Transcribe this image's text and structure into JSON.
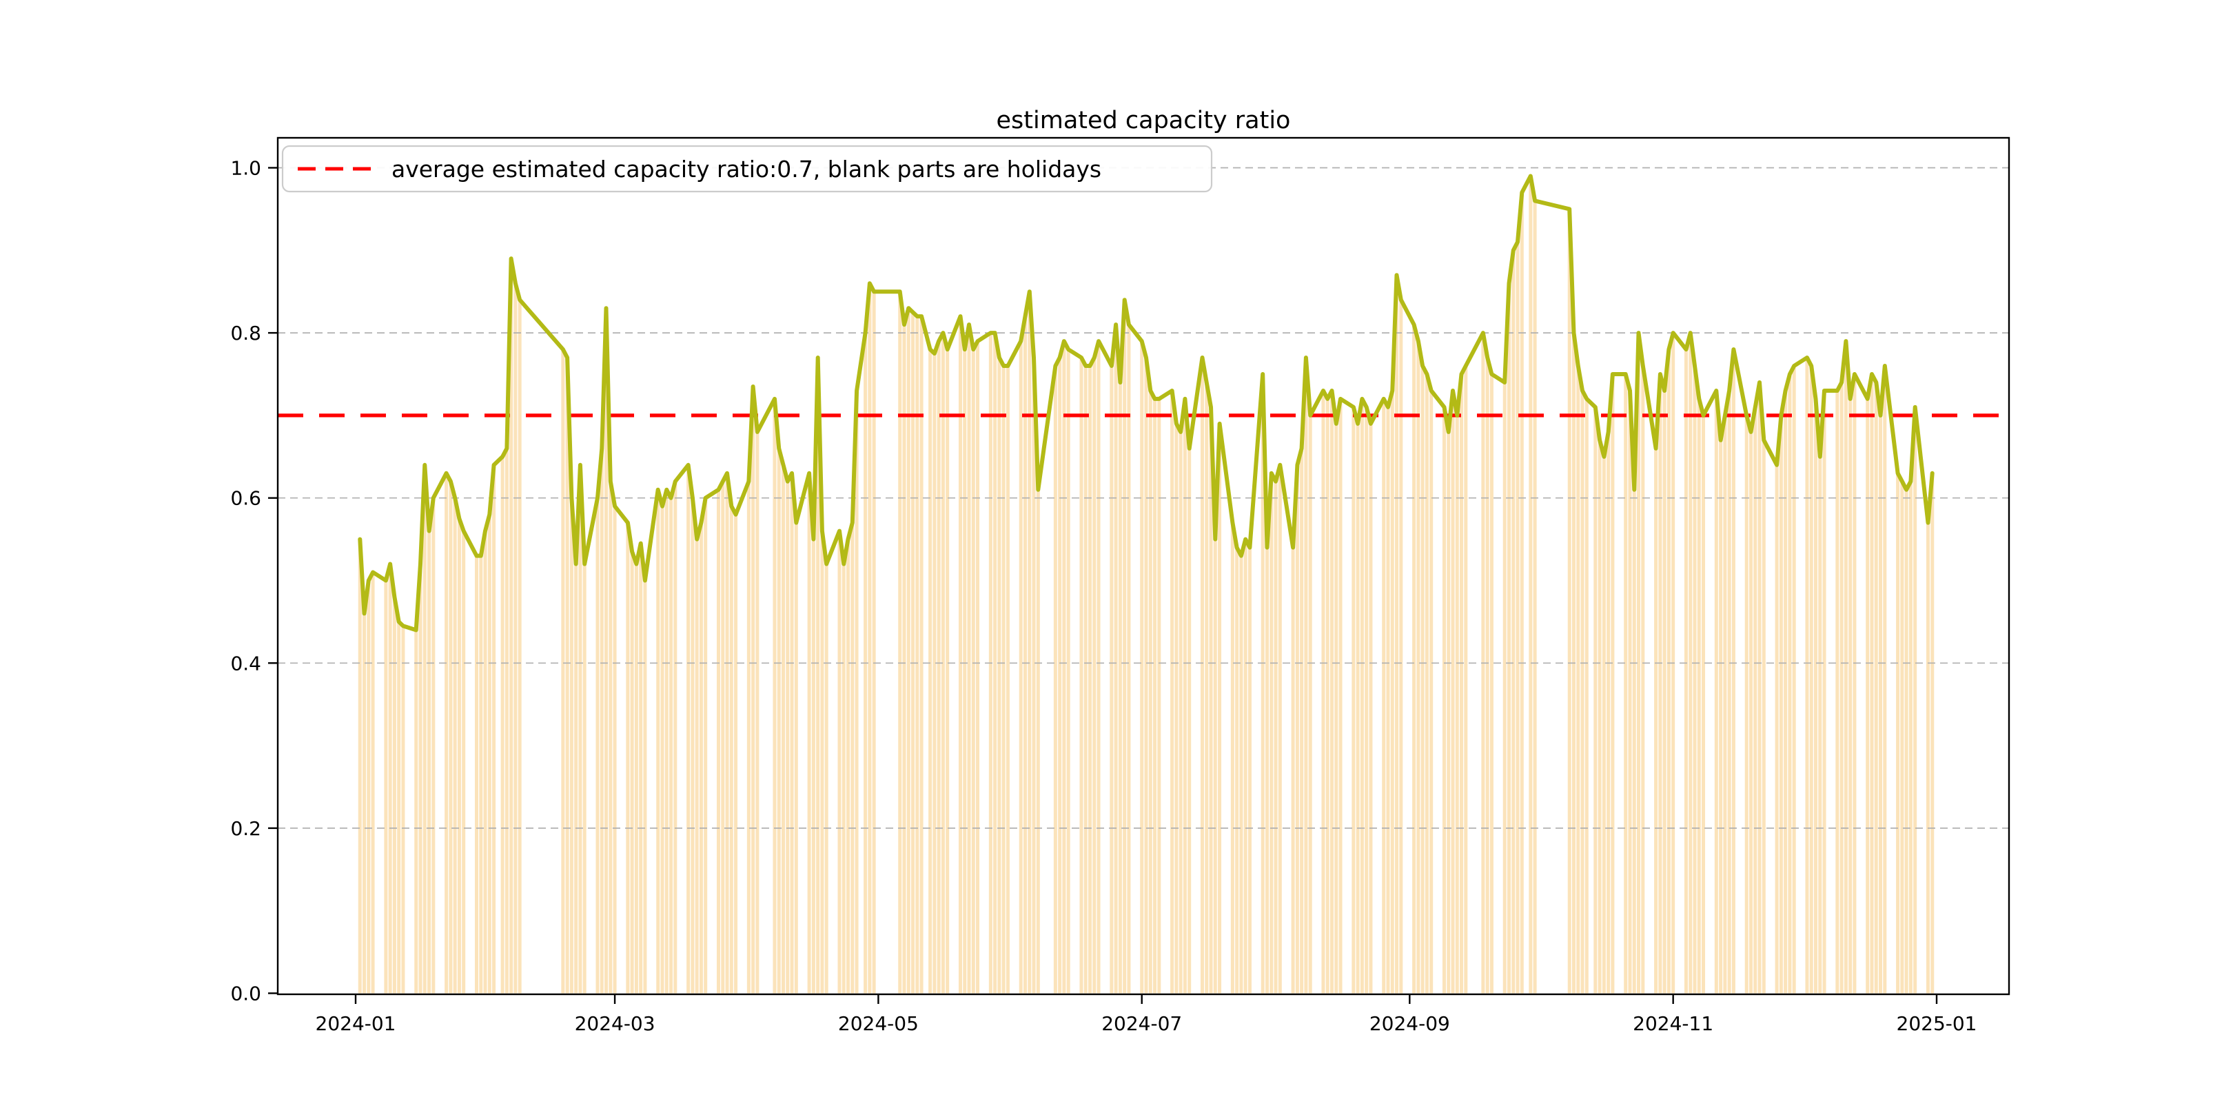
{
  "figure": {
    "title": "estimated capacity ratio"
  },
  "legend": {
    "label": "average estimated capacity ratio:0.7, blank parts are holidays"
  },
  "chart_data": {
    "type": "bar+line",
    "title": "estimated capacity ratio",
    "xlabel": "",
    "ylabel": "",
    "ylim": [
      0.0,
      1.0
    ],
    "x_range": {
      "start": "2023-12-14",
      "end": "2025-01-17"
    },
    "grid": "horizontal dashed gridlines at y ticks",
    "legend_position": "upper left",
    "average_line": {
      "value": 0.7,
      "style": "dashed",
      "color": "#ff0000",
      "label": "average estimated capacity ratio:0.7, blank parts are holidays"
    },
    "note": "bars and line share the same daily values; blank parts (no bars) are holidays/weekends",
    "colors": {
      "bar": "#FBE3BA",
      "line": "#b3ba16",
      "average_line": "#ff0000",
      "grid": "#b0b0b0",
      "spine": "#000000",
      "legend_border": "#cccccc",
      "background": "#ffffff"
    },
    "yticks": [
      {
        "value": 0.0,
        "label": "0.0"
      },
      {
        "value": 0.2,
        "label": "0.2"
      },
      {
        "value": 0.4,
        "label": "0.4"
      },
      {
        "value": 0.6,
        "label": "0.6"
      },
      {
        "value": 0.8,
        "label": "0.8"
      },
      {
        "value": 1.0,
        "label": "1.0"
      }
    ],
    "xticks": [
      {
        "date": "2024-01-01",
        "label": "2024-01"
      },
      {
        "date": "2024-03-01",
        "label": "2024-03"
      },
      {
        "date": "2024-05-01",
        "label": "2024-05"
      },
      {
        "date": "2024-07-01",
        "label": "2024-07"
      },
      {
        "date": "2024-09-01",
        "label": "2024-09"
      },
      {
        "date": "2024-11-01",
        "label": "2024-11"
      },
      {
        "date": "2025-01-01",
        "label": "2025-01"
      }
    ],
    "series": [
      {
        "name": "estimated capacity ratio",
        "render": [
          "bar",
          "line"
        ],
        "points": [
          [
            "2024-01-02",
            0.55
          ],
          [
            "2024-01-03",
            0.46
          ],
          [
            "2024-01-04",
            0.5
          ],
          [
            "2024-01-05",
            0.51
          ],
          [
            "2024-01-08",
            0.5
          ],
          [
            "2024-01-09",
            0.52
          ],
          [
            "2024-01-10",
            0.48
          ],
          [
            "2024-01-11",
            0.45
          ],
          [
            "2024-01-12",
            0.445
          ],
          [
            "2024-01-15",
            0.44
          ],
          [
            "2024-01-16",
            0.52
          ],
          [
            "2024-01-17",
            0.64
          ],
          [
            "2024-01-18",
            0.56
          ],
          [
            "2024-01-19",
            0.6
          ],
          [
            "2024-01-22",
            0.63
          ],
          [
            "2024-01-23",
            0.62
          ],
          [
            "2024-01-24",
            0.6
          ],
          [
            "2024-01-25",
            0.575
          ],
          [
            "2024-01-26",
            0.56
          ],
          [
            "2024-01-29",
            0.53
          ],
          [
            "2024-01-30",
            0.53
          ],
          [
            "2024-01-31",
            0.56
          ],
          [
            "2024-02-01",
            0.58
          ],
          [
            "2024-02-02",
            0.64
          ],
          [
            "2024-02-04",
            0.65
          ],
          [
            "2024-02-05",
            0.66
          ],
          [
            "2024-02-06",
            0.89
          ],
          [
            "2024-02-07",
            0.86
          ],
          [
            "2024-02-08",
            0.84
          ],
          [
            "2024-02-18",
            0.78
          ],
          [
            "2024-02-19",
            0.77
          ],
          [
            "2024-02-20",
            0.6
          ],
          [
            "2024-02-21",
            0.52
          ],
          [
            "2024-02-22",
            0.64
          ],
          [
            "2024-02-23",
            0.52
          ],
          [
            "2024-02-26",
            0.6
          ],
          [
            "2024-02-27",
            0.66
          ],
          [
            "2024-02-28",
            0.83
          ],
          [
            "2024-02-29",
            0.62
          ],
          [
            "2024-03-01",
            0.59
          ],
          [
            "2024-03-04",
            0.57
          ],
          [
            "2024-03-05",
            0.535
          ],
          [
            "2024-03-06",
            0.52
          ],
          [
            "2024-03-07",
            0.545
          ],
          [
            "2024-03-08",
            0.5
          ],
          [
            "2024-03-11",
            0.61
          ],
          [
            "2024-03-12",
            0.59
          ],
          [
            "2024-03-13",
            0.61
          ],
          [
            "2024-03-14",
            0.6
          ],
          [
            "2024-03-15",
            0.62
          ],
          [
            "2024-03-18",
            0.64
          ],
          [
            "2024-03-19",
            0.6
          ],
          [
            "2024-03-20",
            0.55
          ],
          [
            "2024-03-21",
            0.57
          ],
          [
            "2024-03-22",
            0.6
          ],
          [
            "2024-03-25",
            0.61
          ],
          [
            "2024-03-26",
            0.62
          ],
          [
            "2024-03-27",
            0.63
          ],
          [
            "2024-03-28",
            0.59
          ],
          [
            "2024-03-29",
            0.58
          ],
          [
            "2024-04-01",
            0.62
          ],
          [
            "2024-04-02",
            0.735
          ],
          [
            "2024-04-03",
            0.68
          ],
          [
            "2024-04-07",
            0.72
          ],
          [
            "2024-04-08",
            0.66
          ],
          [
            "2024-04-09",
            0.64
          ],
          [
            "2024-04-10",
            0.62
          ],
          [
            "2024-04-11",
            0.63
          ],
          [
            "2024-04-12",
            0.57
          ],
          [
            "2024-04-15",
            0.63
          ],
          [
            "2024-04-16",
            0.55
          ],
          [
            "2024-04-17",
            0.77
          ],
          [
            "2024-04-18",
            0.56
          ],
          [
            "2024-04-19",
            0.52
          ],
          [
            "2024-04-22",
            0.56
          ],
          [
            "2024-04-23",
            0.52
          ],
          [
            "2024-04-24",
            0.55
          ],
          [
            "2024-04-25",
            0.57
          ],
          [
            "2024-04-26",
            0.73
          ],
          [
            "2024-04-28",
            0.8
          ],
          [
            "2024-04-29",
            0.86
          ],
          [
            "2024-04-30",
            0.85
          ],
          [
            "2024-05-06",
            0.85
          ],
          [
            "2024-05-07",
            0.81
          ],
          [
            "2024-05-08",
            0.83
          ],
          [
            "2024-05-09",
            0.825
          ],
          [
            "2024-05-10",
            0.82
          ],
          [
            "2024-05-11",
            0.82
          ],
          [
            "2024-05-13",
            0.78
          ],
          [
            "2024-05-14",
            0.775
          ],
          [
            "2024-05-15",
            0.79
          ],
          [
            "2024-05-16",
            0.8
          ],
          [
            "2024-05-17",
            0.78
          ],
          [
            "2024-05-20",
            0.82
          ],
          [
            "2024-05-21",
            0.78
          ],
          [
            "2024-05-22",
            0.81
          ],
          [
            "2024-05-23",
            0.78
          ],
          [
            "2024-05-24",
            0.79
          ],
          [
            "2024-05-27",
            0.8
          ],
          [
            "2024-05-28",
            0.8
          ],
          [
            "2024-05-29",
            0.77
          ],
          [
            "2024-05-30",
            0.76
          ],
          [
            "2024-05-31",
            0.76
          ],
          [
            "2024-06-03",
            0.79
          ],
          [
            "2024-06-04",
            0.82
          ],
          [
            "2024-06-05",
            0.85
          ],
          [
            "2024-06-06",
            0.77
          ],
          [
            "2024-06-07",
            0.61
          ],
          [
            "2024-06-11",
            0.76
          ],
          [
            "2024-06-12",
            0.77
          ],
          [
            "2024-06-13",
            0.79
          ],
          [
            "2024-06-14",
            0.78
          ],
          [
            "2024-06-17",
            0.77
          ],
          [
            "2024-06-18",
            0.76
          ],
          [
            "2024-06-19",
            0.76
          ],
          [
            "2024-06-20",
            0.77
          ],
          [
            "2024-06-21",
            0.79
          ],
          [
            "2024-06-24",
            0.76
          ],
          [
            "2024-06-25",
            0.81
          ],
          [
            "2024-06-26",
            0.74
          ],
          [
            "2024-06-27",
            0.84
          ],
          [
            "2024-06-28",
            0.81
          ],
          [
            "2024-07-01",
            0.79
          ],
          [
            "2024-07-02",
            0.77
          ],
          [
            "2024-07-03",
            0.73
          ],
          [
            "2024-07-04",
            0.72
          ],
          [
            "2024-07-05",
            0.72
          ],
          [
            "2024-07-08",
            0.73
          ],
          [
            "2024-07-09",
            0.69
          ],
          [
            "2024-07-10",
            0.68
          ],
          [
            "2024-07-11",
            0.72
          ],
          [
            "2024-07-12",
            0.66
          ],
          [
            "2024-07-15",
            0.77
          ],
          [
            "2024-07-16",
            0.74
          ],
          [
            "2024-07-17",
            0.71
          ],
          [
            "2024-07-18",
            0.55
          ],
          [
            "2024-07-19",
            0.69
          ],
          [
            "2024-07-22",
            0.57
          ],
          [
            "2024-07-23",
            0.54
          ],
          [
            "2024-07-24",
            0.53
          ],
          [
            "2024-07-25",
            0.55
          ],
          [
            "2024-07-26",
            0.54
          ],
          [
            "2024-07-29",
            0.75
          ],
          [
            "2024-07-30",
            0.54
          ],
          [
            "2024-07-31",
            0.63
          ],
          [
            "2024-08-01",
            0.62
          ],
          [
            "2024-08-02",
            0.64
          ],
          [
            "2024-08-05",
            0.54
          ],
          [
            "2024-08-06",
            0.64
          ],
          [
            "2024-08-07",
            0.66
          ],
          [
            "2024-08-08",
            0.77
          ],
          [
            "2024-08-09",
            0.7
          ],
          [
            "2024-08-12",
            0.73
          ],
          [
            "2024-08-13",
            0.72
          ],
          [
            "2024-08-14",
            0.73
          ],
          [
            "2024-08-15",
            0.69
          ],
          [
            "2024-08-16",
            0.72
          ],
          [
            "2024-08-19",
            0.71
          ],
          [
            "2024-08-20",
            0.69
          ],
          [
            "2024-08-21",
            0.72
          ],
          [
            "2024-08-22",
            0.71
          ],
          [
            "2024-08-23",
            0.69
          ],
          [
            "2024-08-26",
            0.72
          ],
          [
            "2024-08-27",
            0.71
          ],
          [
            "2024-08-28",
            0.73
          ],
          [
            "2024-08-29",
            0.87
          ],
          [
            "2024-08-30",
            0.84
          ],
          [
            "2024-09-02",
            0.81
          ],
          [
            "2024-09-03",
            0.79
          ],
          [
            "2024-09-04",
            0.76
          ],
          [
            "2024-09-05",
            0.75
          ],
          [
            "2024-09-06",
            0.73
          ],
          [
            "2024-09-09",
            0.71
          ],
          [
            "2024-09-10",
            0.68
          ],
          [
            "2024-09-11",
            0.73
          ],
          [
            "2024-09-12",
            0.7
          ],
          [
            "2024-09-13",
            0.75
          ],
          [
            "2024-09-14",
            0.76
          ],
          [
            "2024-09-18",
            0.8
          ],
          [
            "2024-09-19",
            0.77
          ],
          [
            "2024-09-20",
            0.75
          ],
          [
            "2024-09-23",
            0.74
          ],
          [
            "2024-09-24",
            0.86
          ],
          [
            "2024-09-25",
            0.9
          ],
          [
            "2024-09-26",
            0.91
          ],
          [
            "2024-09-27",
            0.97
          ],
          [
            "2024-09-29",
            0.99
          ],
          [
            "2024-09-30",
            0.96
          ],
          [
            "2024-10-08",
            0.95
          ],
          [
            "2024-10-09",
            0.8
          ],
          [
            "2024-10-10",
            0.76
          ],
          [
            "2024-10-11",
            0.73
          ],
          [
            "2024-10-12",
            0.72
          ],
          [
            "2024-10-14",
            0.71
          ],
          [
            "2024-10-15",
            0.67
          ],
          [
            "2024-10-16",
            0.65
          ],
          [
            "2024-10-17",
            0.68
          ],
          [
            "2024-10-18",
            0.75
          ],
          [
            "2024-10-21",
            0.75
          ],
          [
            "2024-10-22",
            0.73
          ],
          [
            "2024-10-23",
            0.61
          ],
          [
            "2024-10-24",
            0.8
          ],
          [
            "2024-10-25",
            0.76
          ],
          [
            "2024-10-28",
            0.66
          ],
          [
            "2024-10-29",
            0.75
          ],
          [
            "2024-10-30",
            0.73
          ],
          [
            "2024-10-31",
            0.78
          ],
          [
            "2024-11-01",
            0.8
          ],
          [
            "2024-11-04",
            0.78
          ],
          [
            "2024-11-05",
            0.8
          ],
          [
            "2024-11-06",
            0.76
          ],
          [
            "2024-11-07",
            0.72
          ],
          [
            "2024-11-08",
            0.7
          ],
          [
            "2024-11-11",
            0.73
          ],
          [
            "2024-11-12",
            0.67
          ],
          [
            "2024-11-13",
            0.7
          ],
          [
            "2024-11-14",
            0.73
          ],
          [
            "2024-11-15",
            0.78
          ],
          [
            "2024-11-18",
            0.7
          ],
          [
            "2024-11-19",
            0.68
          ],
          [
            "2024-11-20",
            0.71
          ],
          [
            "2024-11-21",
            0.74
          ],
          [
            "2024-11-22",
            0.67
          ],
          [
            "2024-11-25",
            0.64
          ],
          [
            "2024-11-26",
            0.7
          ],
          [
            "2024-11-27",
            0.73
          ],
          [
            "2024-11-28",
            0.75
          ],
          [
            "2024-11-29",
            0.76
          ],
          [
            "2024-12-02",
            0.77
          ],
          [
            "2024-12-03",
            0.76
          ],
          [
            "2024-12-04",
            0.72
          ],
          [
            "2024-12-05",
            0.65
          ],
          [
            "2024-12-06",
            0.73
          ],
          [
            "2024-12-09",
            0.73
          ],
          [
            "2024-12-10",
            0.74
          ],
          [
            "2024-12-11",
            0.79
          ],
          [
            "2024-12-12",
            0.72
          ],
          [
            "2024-12-13",
            0.75
          ],
          [
            "2024-12-16",
            0.72
          ],
          [
            "2024-12-17",
            0.75
          ],
          [
            "2024-12-18",
            0.74
          ],
          [
            "2024-12-19",
            0.7
          ],
          [
            "2024-12-20",
            0.76
          ],
          [
            "2024-12-23",
            0.63
          ],
          [
            "2024-12-24",
            0.62
          ],
          [
            "2024-12-25",
            0.61
          ],
          [
            "2024-12-26",
            0.62
          ],
          [
            "2024-12-27",
            0.71
          ],
          [
            "2024-12-30",
            0.57
          ],
          [
            "2024-12-31",
            0.63
          ]
        ]
      }
    ]
  }
}
